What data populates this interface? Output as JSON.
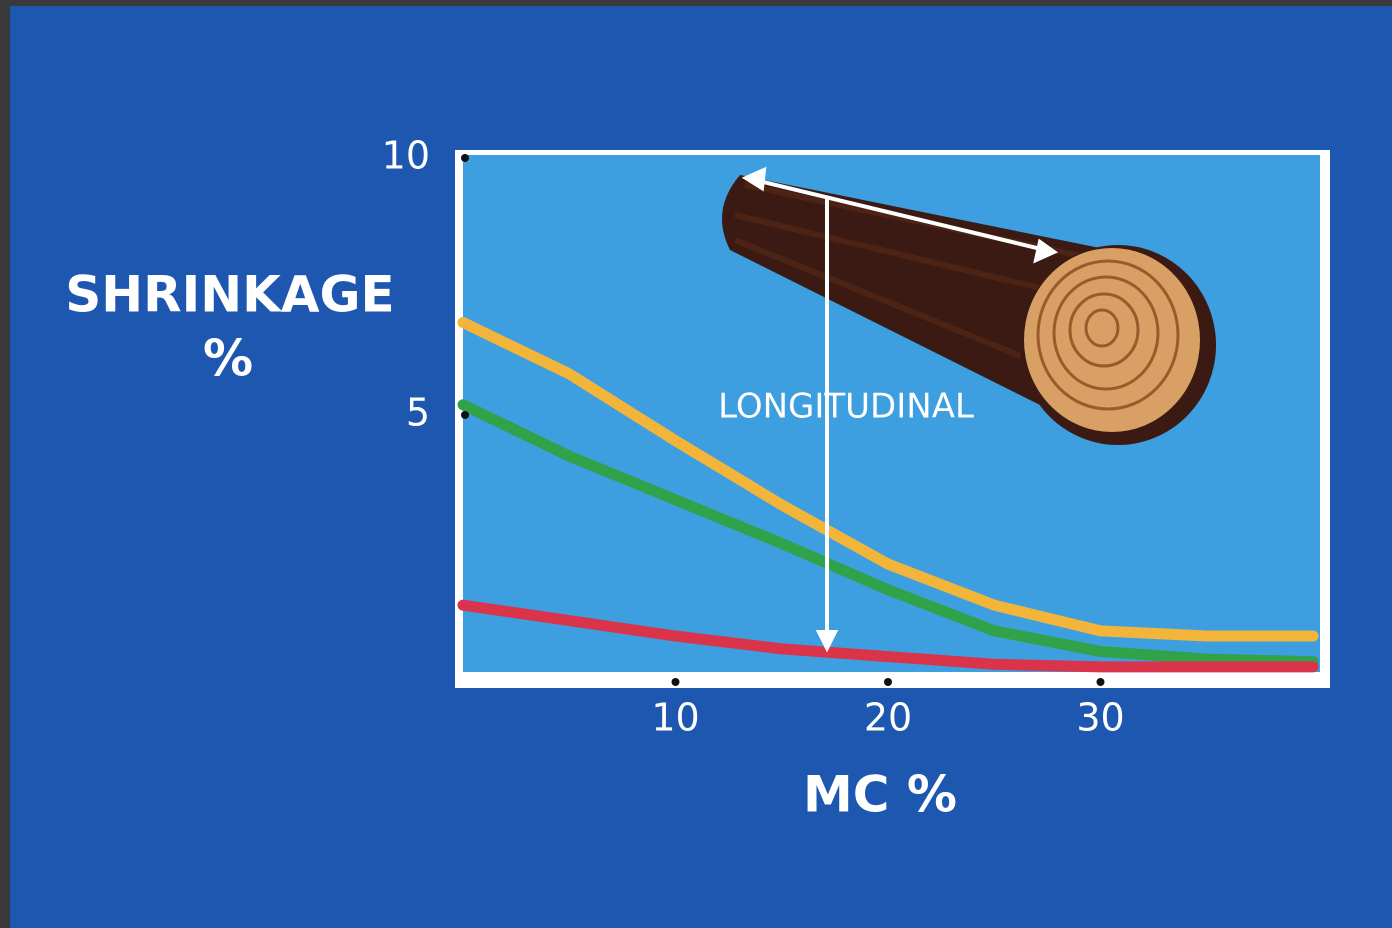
{
  "chart_data": {
    "type": "line",
    "ylabel": [
      "SHRINKAGE",
      "%"
    ],
    "xlabel": "MC %",
    "annotation": "LONGITUDINAL",
    "x": [
      0,
      5,
      10,
      15,
      20,
      25,
      30,
      35,
      40
    ],
    "series": [
      {
        "color": "#f2b53a",
        "values": [
          6.8,
          5.8,
          4.5,
          3.25,
          2.1,
          1.3,
          0.8,
          0.7,
          0.7
        ]
      },
      {
        "color": "#2fa24a",
        "values": [
          5.2,
          4.2,
          3.35,
          2.5,
          1.6,
          0.8,
          0.4,
          0.25,
          0.2
        ]
      },
      {
        "color": "#d9344a",
        "values": [
          1.3,
          1.0,
          0.7,
          0.45,
          0.3,
          0.15,
          0.1,
          0.1,
          0.1
        ]
      }
    ],
    "xlim": [
      0,
      40
    ],
    "xticks": [
      10,
      20,
      30
    ],
    "ylim": [
      0,
      10
    ],
    "yticks": [
      5,
      10
    ]
  }
}
